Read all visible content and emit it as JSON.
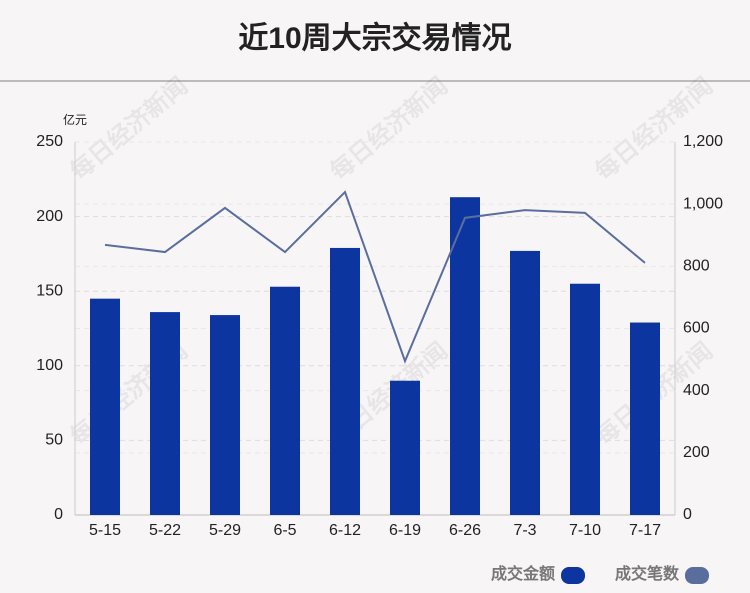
{
  "chart_data": {
    "type": "bar_line",
    "title": "近10周大宗交易情况",
    "y_label": "亿元",
    "watermark": "每日经济新闻",
    "categories": [
      "5-15",
      "5-22",
      "5-29",
      "6-5",
      "6-12",
      "6-19",
      "6-26",
      "7-3",
      "7-10",
      "7-17"
    ],
    "series": [
      {
        "name": "成交金额",
        "type": "bar",
        "color": "#0d35a0",
        "values": [
          145,
          136,
          134,
          153,
          179,
          90,
          213,
          177,
          155,
          129
        ]
      },
      {
        "name": "成交笔数",
        "type": "line",
        "axis": "y2",
        "color": "#5a6e9e",
        "values": [
          869,
          846,
          988,
          846,
          1039,
          495,
          956,
          981,
          972,
          811
        ]
      }
    ],
    "ylim": [
      0,
      250
    ],
    "yticks": [
      0,
      50,
      100,
      150,
      200,
      250
    ],
    "y2lim": [
      0,
      1200
    ],
    "y2ticks": [
      0,
      200,
      400,
      600,
      800,
      {
        "value": 1000,
        "label": "1,000"
      },
      {
        "value": 1200,
        "label": "1,200"
      }
    ],
    "grid": true,
    "legend": "bottom-right"
  }
}
